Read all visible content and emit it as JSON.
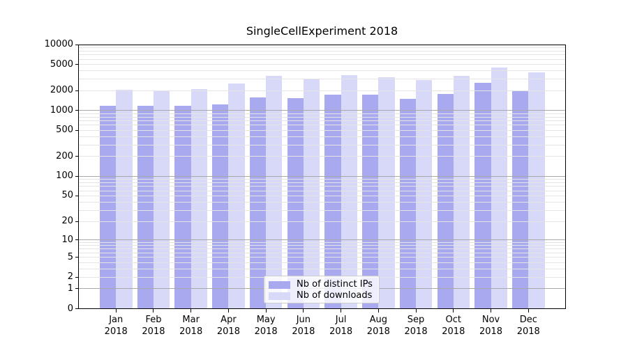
{
  "title": "SingleCellExperiment 2018",
  "chart_data": {
    "type": "bar",
    "title": "SingleCellExperiment 2018",
    "categories": [
      "Jan 2018",
      "Feb 2018",
      "Mar 2018",
      "Apr 2018",
      "May 2018",
      "Jun 2018",
      "Jul 2018",
      "Aug 2018",
      "Sep 2018",
      "Oct 2018",
      "Nov 2018",
      "Dec 2018"
    ],
    "x_tick_months": [
      "Jan",
      "Feb",
      "Mar",
      "Apr",
      "May",
      "Jun",
      "Jul",
      "Aug",
      "Sep",
      "Oct",
      "Nov",
      "Dec"
    ],
    "x_tick_year": "2018",
    "series": [
      {
        "name": "Nb of distinct IPs",
        "color": "#a9a9ef",
        "values": [
          1190,
          1170,
          1180,
          1230,
          1590,
          1530,
          1740,
          1730,
          1500,
          1770,
          2610,
          1960
        ]
      },
      {
        "name": "Nb of downloads",
        "color": "#d8d8f8",
        "values": [
          2060,
          1950,
          2100,
          2540,
          3380,
          3070,
          3440,
          3220,
          2920,
          3330,
          4490,
          3790
        ]
      }
    ],
    "y_ticks": [
      0,
      1,
      2,
      5,
      10,
      20,
      50,
      100,
      200,
      500,
      1000,
      2000,
      5000,
      10000
    ],
    "ylim": [
      0,
      10000
    ],
    "y_scale": "log10(value+1)",
    "grid": {
      "on": true,
      "minor_color": "#e4e4e4",
      "major_color": "#a8a8a8"
    },
    "legend_position": "inside-bottom-center"
  }
}
